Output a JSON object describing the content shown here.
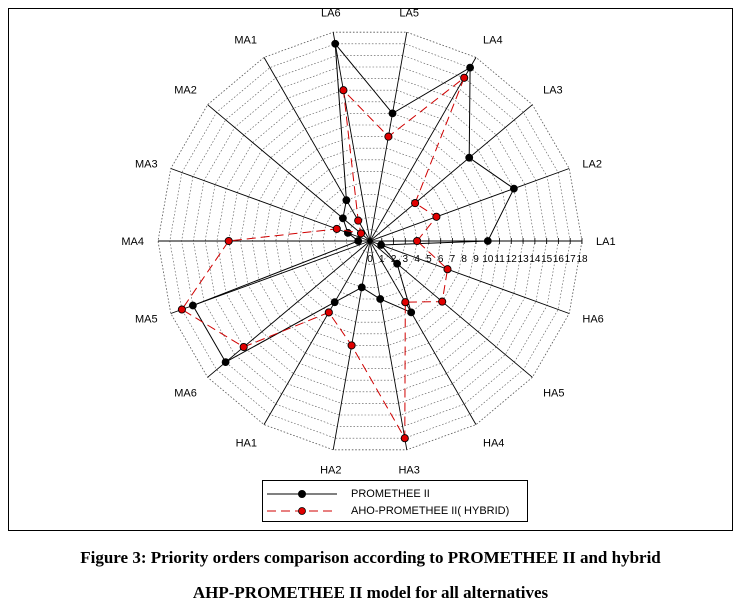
{
  "figure": {
    "caption_bold": "Figure 3:",
    "caption_line1_rest": " Priority orders comparison according to PROMETHEE II and hybrid",
    "caption_line2": "AHP-PROMETHEE II model for all alternatives"
  },
  "colors": {
    "promethee": "#000000",
    "hybrid": "#d00000",
    "hybrid_marker_fill": "#e00000",
    "grid": "#555555",
    "spoke": "#000000"
  },
  "chart_data": {
    "type": "radar",
    "title": "",
    "axes": [
      "LA1",
      "LA2",
      "LA3",
      "LA4",
      "LA5",
      "LA6",
      "MA1",
      "MA2",
      "MA3",
      "MA4",
      "MA5",
      "MA6",
      "HA1",
      "HA2",
      "HA3",
      "HA4",
      "HA5",
      "HA6"
    ],
    "scale_ticks": [
      "0",
      "1",
      "2",
      "3",
      "4",
      "5",
      "6",
      "7",
      "8",
      "9",
      "10",
      "11",
      "12",
      "13",
      "14",
      "15",
      "16",
      "17",
      "18"
    ],
    "rmin": 0,
    "rmax": 18,
    "grid": true,
    "legend_position": "bottom",
    "series": [
      {
        "name": "PROMETHEE II",
        "style": "solid",
        "values": [
          10,
          13,
          11,
          17,
          11,
          17,
          4,
          3,
          2,
          1,
          16,
          16,
          6,
          4,
          5,
          7,
          3,
          1
        ]
      },
      {
        "name": "AHO-PROMETHEE II( HYBRID)",
        "style": "dashed",
        "values": [
          4,
          6,
          5,
          16,
          9,
          13,
          2,
          1,
          3,
          12,
          17,
          14,
          7,
          9,
          17,
          6,
          8,
          7
        ]
      }
    ]
  }
}
